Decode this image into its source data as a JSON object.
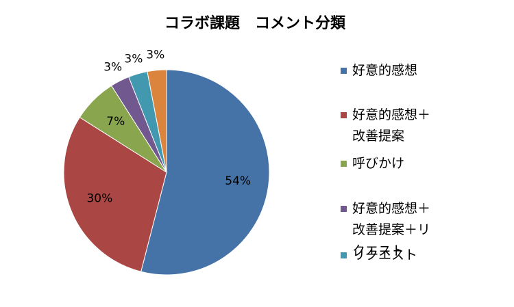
{
  "chart_data": {
    "type": "pie",
    "title": "コラボ課題　コメント分類",
    "categories": [
      "好意的感想",
      "好意的感想＋改善提案",
      "呼びかけ",
      "好意的感想＋改善提案＋リクエスト",
      "リクエスト",
      null
    ],
    "values": [
      54,
      30,
      7,
      3,
      3,
      3
    ],
    "value_labels": [
      "54%",
      "30%",
      "7%",
      "3%",
      "3%",
      "3%"
    ],
    "colors": [
      "#4572a7",
      "#aa4643",
      "#89a54e",
      "#71588f",
      "#4198af",
      "#db843d"
    ],
    "legend": "right"
  }
}
